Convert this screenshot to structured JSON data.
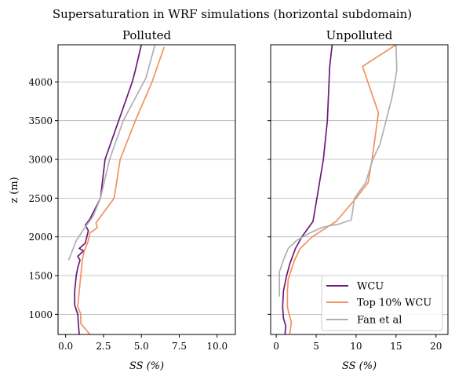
{
  "figure": {
    "suptitle": "Supersaturation in WRF simulations (horizontal subdomain)",
    "ylabel": "z (m)"
  },
  "chart_data": [
    {
      "type": "line",
      "title": "Polluted",
      "xlabel": "SS (%)",
      "ylabel": "z (m)",
      "xlim": [
        -0.5,
        11.2
      ],
      "ylim": [
        740,
        4480
      ],
      "xticks": [
        0.0,
        2.5,
        5.0,
        7.5,
        10.0
      ],
      "xtick_labels": [
        "0.0",
        "2.5",
        "5.0",
        "7.5",
        "10.0"
      ],
      "yticks": [
        1000,
        1500,
        2000,
        2500,
        3000,
        3500,
        4000
      ],
      "ytick_labels": [
        "1000",
        "1500",
        "2000",
        "2500",
        "3000",
        "3500",
        "4000"
      ],
      "grid": "y",
      "series": [
        {
          "name": "WCU",
          "color": "#6a1b7a",
          "points": [
            [
              0.9,
              740
            ],
            [
              0.85,
              850
            ],
            [
              0.8,
              1000
            ],
            [
              0.6,
              1120
            ],
            [
              0.6,
              1300
            ],
            [
              0.7,
              1500
            ],
            [
              0.8,
              1600
            ],
            [
              0.95,
              1700
            ],
            [
              0.8,
              1750
            ],
            [
              1.2,
              1820
            ],
            [
              0.9,
              1850
            ],
            [
              1.3,
              1920
            ],
            [
              1.5,
              2080
            ],
            [
              1.3,
              2150
            ],
            [
              1.6,
              2230
            ],
            [
              2.3,
              2500
            ],
            [
              2.6,
              3000
            ],
            [
              3.5,
              3500
            ],
            [
              4.4,
              4000
            ],
            [
              4.6,
              4150
            ],
            [
              5.0,
              4480
            ]
          ]
        },
        {
          "name": "Top 10% WCU",
          "color": "#f4905e",
          "points": [
            [
              1.6,
              740
            ],
            [
              1.0,
              880
            ],
            [
              1.0,
              1000
            ],
            [
              0.8,
              1100
            ],
            [
              0.9,
              1300
            ],
            [
              1.0,
              1500
            ],
            [
              1.1,
              1700
            ],
            [
              1.2,
              1800
            ],
            [
              1.5,
              1950
            ],
            [
              1.6,
              2050
            ],
            [
              2.1,
              2120
            ],
            [
              2.0,
              2180
            ],
            [
              3.2,
              2500
            ],
            [
              3.6,
              3000
            ],
            [
              4.6,
              3500
            ],
            [
              5.7,
              4000
            ],
            [
              6.5,
              4450
            ]
          ]
        },
        {
          "name": "Fan et al",
          "color": "#b0b0b0",
          "points": [
            [
              0.2,
              1700
            ],
            [
              0.4,
              1800
            ],
            [
              0.7,
              1950
            ],
            [
              1.2,
              2100
            ],
            [
              1.8,
              2260
            ],
            [
              2.3,
              2500
            ],
            [
              2.9,
              3000
            ],
            [
              3.8,
              3500
            ],
            [
              5.3,
              4050
            ],
            [
              5.9,
              4480
            ]
          ]
        }
      ]
    },
    {
      "type": "line",
      "title": "Unpolluted",
      "xlabel": "SS (%)",
      "xlim": [
        -0.7,
        21.5
      ],
      "ylim": [
        740,
        4480
      ],
      "xticks": [
        0,
        5,
        10,
        15,
        20
      ],
      "xtick_labels": [
        "0",
        "5",
        "10",
        "15",
        "20"
      ],
      "yticks": [
        1000,
        1500,
        2000,
        2500,
        3000,
        3500,
        4000
      ],
      "grid": "y",
      "legend": {
        "location": "lower right",
        "entries": [
          "WCU",
          "Top 10% WCU",
          "Fan et al"
        ]
      },
      "series": [
        {
          "name": "WCU",
          "color": "#6a1b7a",
          "points": [
            [
              1.1,
              740
            ],
            [
              1.2,
              850
            ],
            [
              0.9,
              950
            ],
            [
              0.8,
              1100
            ],
            [
              0.9,
              1300
            ],
            [
              1.3,
              1500
            ],
            [
              1.7,
              1650
            ],
            [
              2.4,
              1850
            ],
            [
              3.2,
              2000
            ],
            [
              4.6,
              2200
            ],
            [
              5.1,
              2500
            ],
            [
              5.9,
              3000
            ],
            [
              6.4,
              3500
            ],
            [
              6.7,
              4200
            ],
            [
              7.0,
              4480
            ]
          ]
        },
        {
          "name": "Top 10% WCU",
          "color": "#f4905e",
          "points": [
            [
              1.7,
              750
            ],
            [
              1.9,
              900
            ],
            [
              1.6,
              1000
            ],
            [
              1.4,
              1100
            ],
            [
              1.4,
              1300
            ],
            [
              1.5,
              1450
            ],
            [
              1.8,
              1550
            ],
            [
              2.3,
              1700
            ],
            [
              3.0,
              1850
            ],
            [
              4.5,
              2000
            ],
            [
              7.5,
              2200
            ],
            [
              10.0,
              2500
            ],
            [
              11.5,
              2700
            ],
            [
              12.0,
              3000
            ],
            [
              12.8,
              3600
            ],
            [
              10.8,
              4200
            ],
            [
              15.0,
              4480
            ]
          ]
        },
        {
          "name": "Fan et al",
          "color": "#b0b0b0",
          "points": [
            [
              0.4,
              1230
            ],
            [
              0.4,
              1400
            ],
            [
              0.4,
              1550
            ],
            [
              0.9,
              1700
            ],
            [
              1.5,
              1850
            ],
            [
              2.5,
              1950
            ],
            [
              4.2,
              2050
            ],
            [
              5.7,
              2120
            ],
            [
              7.0,
              2150
            ],
            [
              7.7,
              2160
            ],
            [
              9.4,
              2220
            ],
            [
              9.8,
              2500
            ],
            [
              11.2,
              2700
            ],
            [
              12.1,
              3000
            ],
            [
              13.0,
              3200
            ],
            [
              14.5,
              3800
            ],
            [
              15.1,
              4150
            ],
            [
              15.0,
              4480
            ]
          ]
        }
      ]
    }
  ]
}
